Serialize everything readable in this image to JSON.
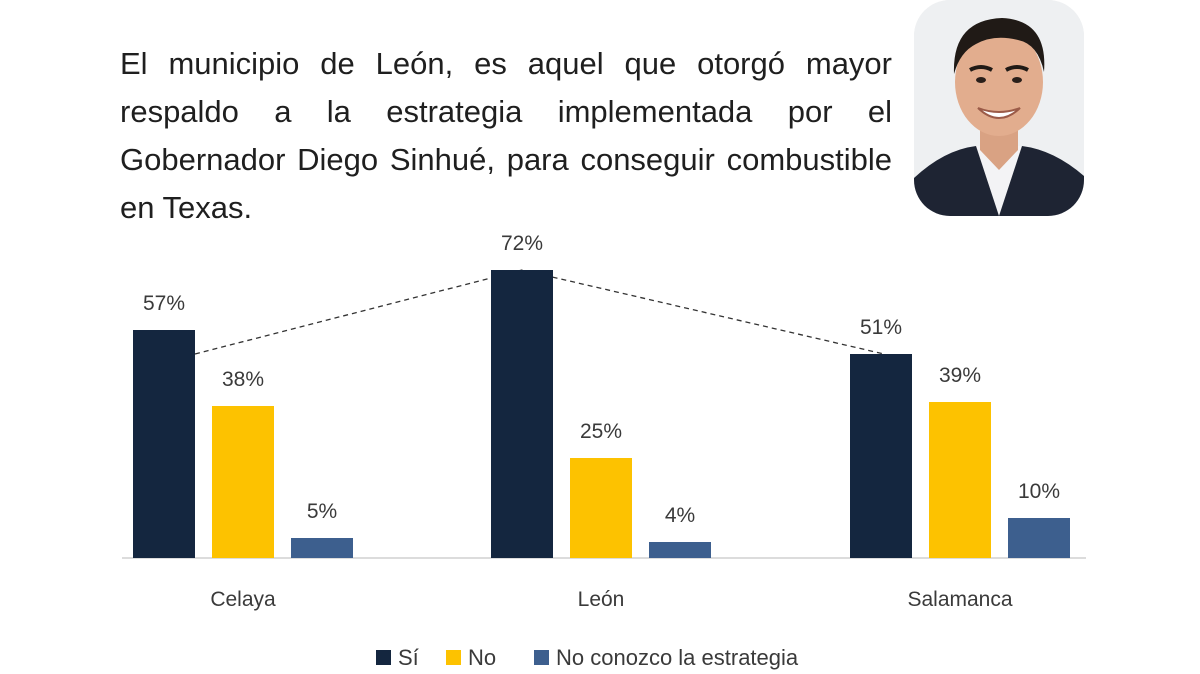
{
  "headline": "El municipio de León, es aquel que otorgó mayor respaldo a la estrategia implementada por el Gobernador Diego Sinhué, para conseguir combustible en Texas.",
  "chart_data": {
    "type": "bar",
    "categories": [
      "Celaya",
      "León",
      "Salamanca"
    ],
    "series": [
      {
        "name": "Sí",
        "values": [
          57,
          72,
          51
        ],
        "color": "#14263f"
      },
      {
        "name": "No",
        "values": [
          38,
          25,
          39
        ],
        "color": "#fdc200"
      },
      {
        "name": "No conozco la estrategia",
        "values": [
          5,
          4,
          10
        ],
        "color": "#3d5f8e"
      }
    ],
    "value_suffix": "%",
    "ylim": [
      0,
      100
    ],
    "grid": false,
    "legend": "bottom",
    "annotation": "dashed line connecting the top of the Sí bars"
  },
  "colors": {
    "text": "#1f1f1f",
    "axis": "#d0d0d0",
    "label": "#3a3a3a"
  }
}
